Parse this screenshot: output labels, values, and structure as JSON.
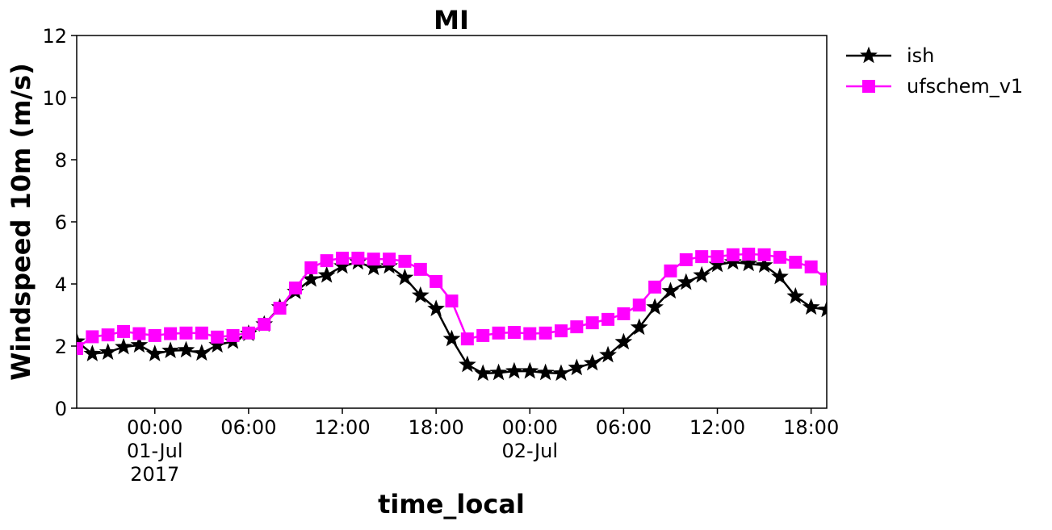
{
  "chart_data": {
    "type": "line",
    "title": "MI",
    "xlabel": "time_local",
    "ylabel": "Windspeed 10m (m/s)",
    "x": [
      "2017-06-30T19:00",
      "2017-06-30T20:00",
      "2017-06-30T21:00",
      "2017-06-30T22:00",
      "2017-06-30T23:00",
      "2017-07-01T00:00",
      "2017-07-01T01:00",
      "2017-07-01T02:00",
      "2017-07-01T03:00",
      "2017-07-01T04:00",
      "2017-07-01T05:00",
      "2017-07-01T06:00",
      "2017-07-01T07:00",
      "2017-07-01T08:00",
      "2017-07-01T09:00",
      "2017-07-01T10:00",
      "2017-07-01T11:00",
      "2017-07-01T12:00",
      "2017-07-01T13:00",
      "2017-07-01T14:00",
      "2017-07-01T15:00",
      "2017-07-01T16:00",
      "2017-07-01T17:00",
      "2017-07-01T18:00",
      "2017-07-01T19:00",
      "2017-07-01T20:00",
      "2017-07-01T21:00",
      "2017-07-01T22:00",
      "2017-07-01T23:00",
      "2017-07-02T00:00",
      "2017-07-02T01:00",
      "2017-07-02T02:00",
      "2017-07-02T03:00",
      "2017-07-02T04:00",
      "2017-07-02T05:00",
      "2017-07-02T06:00",
      "2017-07-02T07:00",
      "2017-07-02T08:00",
      "2017-07-02T09:00",
      "2017-07-02T10:00",
      "2017-07-02T11:00",
      "2017-07-02T12:00",
      "2017-07-02T13:00",
      "2017-07-02T14:00",
      "2017-07-02T15:00",
      "2017-07-02T16:00",
      "2017-07-02T17:00",
      "2017-07-02T18:00",
      "2017-07-02T19:00"
    ],
    "series": [
      {
        "name": "ish",
        "color": "#000000",
        "marker": "star",
        "values": [
          2.15,
          1.75,
          1.8,
          1.97,
          2.03,
          1.75,
          1.85,
          1.87,
          1.77,
          2.03,
          2.15,
          2.4,
          2.7,
          3.25,
          3.75,
          4.15,
          4.28,
          4.57,
          4.7,
          4.52,
          4.57,
          4.2,
          3.63,
          3.2,
          2.23,
          1.4,
          1.12,
          1.14,
          1.19,
          1.19,
          1.14,
          1.12,
          1.3,
          1.45,
          1.71,
          2.13,
          2.6,
          3.25,
          3.77,
          4.05,
          4.28,
          4.62,
          4.7,
          4.65,
          4.6,
          4.23,
          3.6,
          3.25,
          3.17
        ]
      },
      {
        "name": "ufschem_v1",
        "color": "#ff00ff",
        "marker": "square",
        "values": [
          1.92,
          2.3,
          2.36,
          2.47,
          2.4,
          2.34,
          2.4,
          2.42,
          2.42,
          2.29,
          2.34,
          2.42,
          2.7,
          3.22,
          3.87,
          4.52,
          4.75,
          4.83,
          4.83,
          4.8,
          4.8,
          4.73,
          4.47,
          4.08,
          3.45,
          2.23,
          2.34,
          2.42,
          2.44,
          2.4,
          2.42,
          2.49,
          2.62,
          2.75,
          2.86,
          3.04,
          3.32,
          3.9,
          4.42,
          4.78,
          4.88,
          4.88,
          4.94,
          4.96,
          4.94,
          4.86,
          4.7,
          4.55,
          4.16
        ]
      }
    ],
    "xlim": [
      "2017-06-30T19:00",
      "2017-07-02T19:00"
    ],
    "xticks": [
      {
        "value": "2017-07-01T00:00",
        "label": "00:00\n01-Jul\n2017"
      },
      {
        "value": "2017-07-01T06:00",
        "label": "06:00"
      },
      {
        "value": "2017-07-01T12:00",
        "label": "12:00"
      },
      {
        "value": "2017-07-01T18:00",
        "label": "18:00"
      },
      {
        "value": "2017-07-02T00:00",
        "label": "00:00\n02-Jul"
      },
      {
        "value": "2017-07-02T06:00",
        "label": "06:00"
      },
      {
        "value": "2017-07-02T12:00",
        "label": "12:00"
      },
      {
        "value": "2017-07-02T18:00",
        "label": "18:00"
      }
    ],
    "ylim": [
      0,
      12
    ],
    "yticks": [
      0,
      2,
      4,
      6,
      8,
      10,
      12
    ],
    "grid": false,
    "legend": "outside right"
  }
}
